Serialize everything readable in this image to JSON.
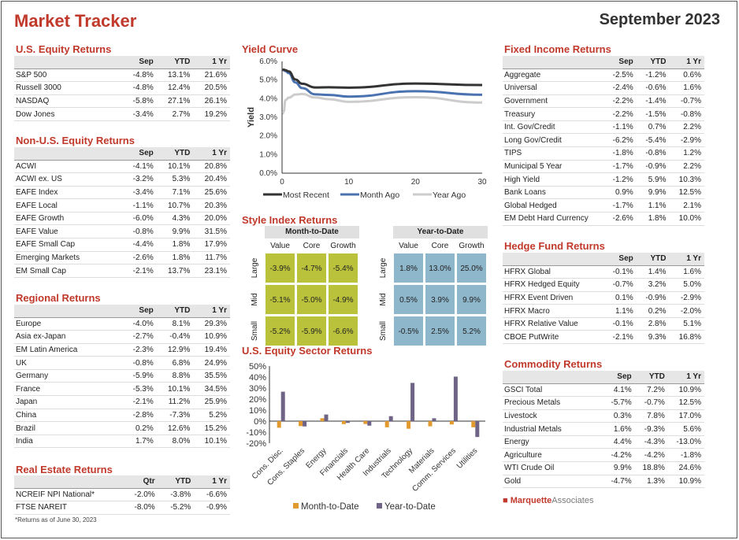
{
  "header": {
    "title": "Market Tracker",
    "date": "September 2023"
  },
  "us_equity": {
    "title": "U.S. Equity Returns",
    "cols": [
      "",
      "Sep",
      "YTD",
      "1 Yr"
    ],
    "rows": [
      [
        "S&P 500",
        "-4.8%",
        "13.1%",
        "21.6%"
      ],
      [
        "Russell 3000",
        "-4.8%",
        "12.4%",
        "20.5%"
      ],
      [
        "NASDAQ",
        "-5.8%",
        "27.1%",
        "26.1%"
      ],
      [
        "Dow Jones",
        "-3.4%",
        "2.7%",
        "19.2%"
      ]
    ]
  },
  "non_us_equity": {
    "title": "Non-U.S. Equity Returns",
    "cols": [
      "",
      "Sep",
      "YTD",
      "1 Yr"
    ],
    "rows": [
      [
        "ACWI",
        "-4.1%",
        "10.1%",
        "20.8%"
      ],
      [
        "ACWI ex. US",
        "-3.2%",
        "5.3%",
        "20.4%"
      ],
      [
        "EAFE Index",
        "-3.4%",
        "7.1%",
        "25.6%"
      ],
      [
        "EAFE Local",
        "-1.1%",
        "10.7%",
        "20.3%"
      ],
      [
        "EAFE Growth",
        "-6.0%",
        "4.3%",
        "20.0%"
      ],
      [
        "EAFE Value",
        "-0.8%",
        "9.9%",
        "31.5%"
      ],
      [
        "EAFE Small Cap",
        "-4.4%",
        "1.8%",
        "17.9%"
      ],
      [
        "Emerging Markets",
        "-2.6%",
        "1.8%",
        "11.7%"
      ],
      [
        "EM Small Cap",
        "-2.1%",
        "13.7%",
        "23.1%"
      ]
    ]
  },
  "regional": {
    "title": "Regional Returns",
    "cols": [
      "",
      "Sep",
      "YTD",
      "1 Yr"
    ],
    "rows": [
      [
        "Europe",
        "-4.0%",
        "8.1%",
        "29.3%"
      ],
      [
        "Asia ex-Japan",
        "-2.7%",
        "-0.4%",
        "10.9%"
      ],
      [
        "EM Latin America",
        "-2.3%",
        "12.9%",
        "19.4%"
      ],
      [
        "UK",
        "-0.8%",
        "6.8%",
        "24.9%"
      ],
      [
        "Germany",
        "-5.9%",
        "8.8%",
        "35.5%"
      ],
      [
        "France",
        "-5.3%",
        "10.1%",
        "34.5%"
      ],
      [
        "Japan",
        "-2.1%",
        "11.2%",
        "25.9%"
      ],
      [
        "China",
        "-2.8%",
        "-7.3%",
        "5.2%"
      ],
      [
        "Brazil",
        "0.2%",
        "12.6%",
        "15.2%"
      ],
      [
        "India",
        "1.7%",
        "8.0%",
        "10.1%"
      ]
    ]
  },
  "real_estate": {
    "title": "Real Estate Returns",
    "cols": [
      "",
      "Qtr",
      "YTD",
      "1 Yr"
    ],
    "rows": [
      [
        "NCREIF NPI National*",
        "-2.0%",
        "-3.8%",
        "-6.6%"
      ],
      [
        "FTSE NAREIT",
        "-8.0%",
        "-5.2%",
        "-0.9%"
      ]
    ],
    "footnote": "*Returns as of June 30, 2023"
  },
  "fixed_income": {
    "title": "Fixed Income Returns",
    "cols": [
      "",
      "Sep",
      "YTD",
      "1 Yr"
    ],
    "rows": [
      [
        "Aggregate",
        "-2.5%",
        "-1.2%",
        "0.6%"
      ],
      [
        "Universal",
        "-2.4%",
        "-0.6%",
        "1.6%"
      ],
      [
        "Government",
        "-2.2%",
        "-1.4%",
        "-0.7%"
      ],
      [
        "Treasury",
        "-2.2%",
        "-1.5%",
        "-0.8%"
      ],
      [
        "Int. Gov/Credit",
        "-1.1%",
        "0.7%",
        "2.2%"
      ],
      [
        "Long Gov/Credit",
        "-6.2%",
        "-5.4%",
        "-2.9%"
      ],
      [
        "TIPS",
        "-1.8%",
        "-0.8%",
        "1.2%"
      ],
      [
        "Municipal 5 Year",
        "-1.7%",
        "-0.9%",
        "2.2%"
      ],
      [
        "High Yield",
        "-1.2%",
        "5.9%",
        "10.3%"
      ],
      [
        "Bank Loans",
        "0.9%",
        "9.9%",
        "12.5%"
      ],
      [
        "Global Hedged",
        "-1.7%",
        "1.1%",
        "2.1%"
      ],
      [
        "EM Debt Hard Currency",
        "-2.6%",
        "1.8%",
        "10.0%"
      ]
    ]
  },
  "hedge_fund": {
    "title": "Hedge Fund Returns",
    "cols": [
      "",
      "Sep",
      "YTD",
      "1 Yr"
    ],
    "rows": [
      [
        "HFRX Global",
        "-0.1%",
        "1.4%",
        "1.6%"
      ],
      [
        "HFRX Hedged Equity",
        "-0.7%",
        "3.2%",
        "5.0%"
      ],
      [
        "HFRX Event Driven",
        "0.1%",
        "-0.9%",
        "-2.9%"
      ],
      [
        "HFRX Macro",
        "1.1%",
        "0.2%",
        "-2.0%"
      ],
      [
        "HFRX Relative Value",
        "-0.1%",
        "2.8%",
        "5.1%"
      ],
      [
        "CBOE PutWrite",
        "-2.1%",
        "9.3%",
        "16.8%"
      ]
    ]
  },
  "commodity": {
    "title": "Commodity Returns",
    "cols": [
      "",
      "Sep",
      "YTD",
      "1 Yr"
    ],
    "rows": [
      [
        "GSCI Total",
        "4.1%",
        "7.2%",
        "10.9%"
      ],
      [
        "Precious Metals",
        "-5.7%",
        "-0.7%",
        "12.5%"
      ],
      [
        "Livestock",
        "0.3%",
        "7.8%",
        "17.0%"
      ],
      [
        "Industrial Metals",
        "1.6%",
        "-9.3%",
        "5.6%"
      ],
      [
        "Energy",
        "4.4%",
        "-4.3%",
        "-13.0%"
      ],
      [
        "Agriculture",
        "-4.2%",
        "-4.2%",
        "-1.8%"
      ],
      [
        "WTI Crude Oil",
        "9.9%",
        "18.8%",
        "24.6%"
      ],
      [
        "Gold",
        "-4.7%",
        "1.3%",
        "10.9%"
      ]
    ]
  },
  "style_index": {
    "title": "Style Index Returns",
    "mtd_label": "Month-to-Date",
    "ytd_label": "Year-to-Date",
    "cols": [
      "Value",
      "Core",
      "Growth"
    ],
    "rows": [
      "Large",
      "Mid",
      "Small"
    ],
    "mtd": [
      [
        "-3.9%",
        "-4.7%",
        "-5.4%"
      ],
      [
        "-5.1%",
        "-5.0%",
        "-4.9%"
      ],
      [
        "-5.2%",
        "-5.9%",
        "-6.6%"
      ]
    ],
    "ytd": [
      [
        "1.8%",
        "13.0%",
        "25.0%"
      ],
      [
        "0.5%",
        "3.9%",
        "9.9%"
      ],
      [
        "-0.5%",
        "2.5%",
        "5.2%"
      ]
    ]
  },
  "logo": {
    "brand": "Marquette",
    "suffix": "Associates"
  },
  "chart_data": [
    {
      "type": "line",
      "title": "Yield Curve",
      "ylabel": "Yield",
      "xlabel": "",
      "xlim": [
        0,
        30
      ],
      "ylim": [
        0,
        6
      ],
      "xticks": [
        "0",
        "10",
        "20",
        "30"
      ],
      "yticks": [
        "0.0%",
        "1.0%",
        "2.0%",
        "3.0%",
        "4.0%",
        "5.0%",
        "6.0%"
      ],
      "x": [
        0.08,
        0.25,
        0.5,
        1,
        2,
        3,
        5,
        7,
        10,
        20,
        30
      ],
      "series": [
        {
          "name": "Most Recent",
          "color": "#333333",
          "values": [
            5.55,
            5.55,
            5.53,
            5.46,
            5.03,
            4.8,
            4.6,
            4.61,
            4.59,
            4.81,
            4.73
          ]
        },
        {
          "name": "Month Ago",
          "color": "#4a72b0",
          "values": [
            5.53,
            5.56,
            5.48,
            5.37,
            4.87,
            4.57,
            4.23,
            4.2,
            4.11,
            4.4,
            4.21
          ]
        },
        {
          "name": "Year Ago",
          "color": "#cccccc",
          "values": [
            3.2,
            3.3,
            3.92,
            4.05,
            4.22,
            4.25,
            4.06,
            3.97,
            3.83,
            4.08,
            3.79
          ]
        }
      ]
    },
    {
      "type": "bar",
      "title": "U.S. Equity Sector Returns",
      "ylim": [
        -20,
        50
      ],
      "yticks": [
        "-20%",
        "-10%",
        "0%",
        "10%",
        "20%",
        "30%",
        "40%",
        "50%"
      ],
      "categories": [
        "Cons. Disc.",
        "Cons. Staples",
        "Energy",
        "Financials",
        "Health Care",
        "Industrials",
        "Technology",
        "Materials",
        "Comm. Services",
        "Utilities"
      ],
      "series": [
        {
          "name": "Month-to-Date",
          "color": "#e29a2e",
          "values": [
            -6.0,
            -4.5,
            2.6,
            -2.7,
            -2.6,
            -5.6,
            -6.9,
            -4.7,
            -3.0,
            -5.6
          ]
        },
        {
          "name": "Year-to-Date",
          "color": "#6f6386",
          "values": [
            26.7,
            -4.8,
            6.0,
            -1.6,
            -4.1,
            4.5,
            34.7,
            2.6,
            40.4,
            -14.4
          ]
        }
      ]
    }
  ]
}
